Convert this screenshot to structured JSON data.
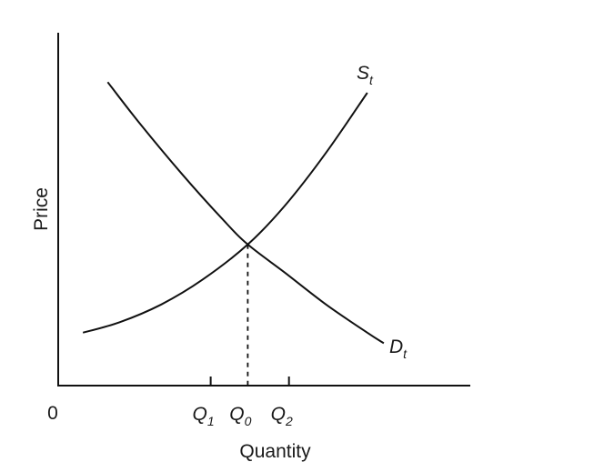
{
  "chart_data": {
    "type": "line",
    "title": "",
    "xlabel": "Quantity",
    "ylabel": "Price",
    "origin_label": "0",
    "grid": false,
    "legend": "none",
    "xlim": [
      0,
      10
    ],
    "ylim": [
      0,
      10
    ],
    "x_ticks": [
      {
        "id": "q1",
        "main": "Q",
        "sub": "1",
        "x": 3.7
      },
      {
        "id": "q0",
        "main": "Q",
        "sub": "0",
        "x": 4.6
      },
      {
        "id": "q2",
        "main": "Q",
        "sub": "2",
        "x": 5.6
      }
    ],
    "equilibrium": {
      "x": 4.6,
      "y": 4.0
    },
    "series": [
      {
        "id": "supply",
        "name_main": "S",
        "name_sub": "t",
        "points": [
          [
            0.6,
            1.5
          ],
          [
            1.5,
            1.8
          ],
          [
            2.5,
            2.3
          ],
          [
            3.5,
            3.0
          ],
          [
            4.6,
            4.0
          ],
          [
            5.5,
            5.1
          ],
          [
            6.5,
            6.6
          ],
          [
            7.5,
            8.3
          ],
          [
            7.3,
            8.5
          ],
          [
            7.4,
            8.6
          ]
        ]
      },
      {
        "id": "demand",
        "name_main": "D",
        "name_sub": "t",
        "points": [
          [
            1.2,
            8.6
          ],
          [
            2.0,
            7.4
          ],
          [
            3.0,
            6.0
          ],
          [
            4.0,
            4.7
          ],
          [
            4.6,
            4.0
          ],
          [
            5.5,
            3.2
          ],
          [
            6.5,
            2.3
          ],
          [
            7.5,
            1.5
          ],
          [
            7.9,
            1.2
          ]
        ]
      }
    ]
  }
}
